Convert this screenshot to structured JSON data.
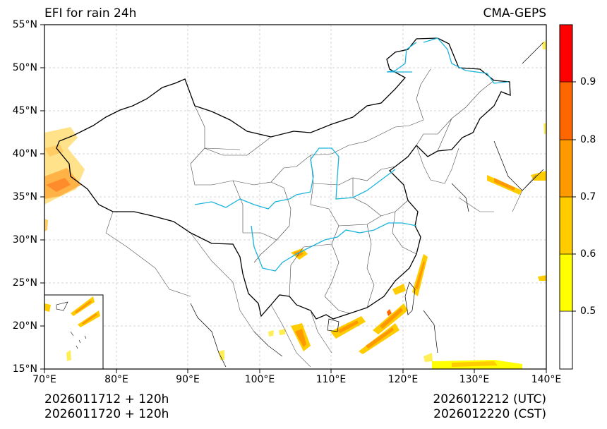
{
  "title_left": "EFI for rain 24h",
  "title_right": "CMA-GEPS",
  "axes": {
    "lat_labels": [
      "55°N",
      "50°N",
      "45°N",
      "40°N",
      "35°N",
      "30°N",
      "25°N",
      "20°N",
      "15°N"
    ],
    "lon_labels": [
      "70°E",
      "80°E",
      "90°E",
      "100°E",
      "110°E",
      "120°E",
      "130°E",
      "140°E"
    ]
  },
  "colorbar": {
    "tick_labels": [
      "0.5",
      "0.6",
      "0.7",
      "0.8",
      "0.9"
    ],
    "colors": [
      "#ffffff",
      "#ffff00",
      "#ffcc00",
      "#ff9900",
      "#ff6600",
      "#ff0000"
    ]
  },
  "footer": {
    "init_utc": "2026011712 + 120h",
    "init_cst": "2026011720 + 120h",
    "valid_utc": "2026012212 (UTC)",
    "valid_cst": "2026012220 (CST)"
  },
  "palette": {
    "river": "#1ab4dc",
    "border": "#000000",
    "grid": "#c8c8c8"
  }
}
